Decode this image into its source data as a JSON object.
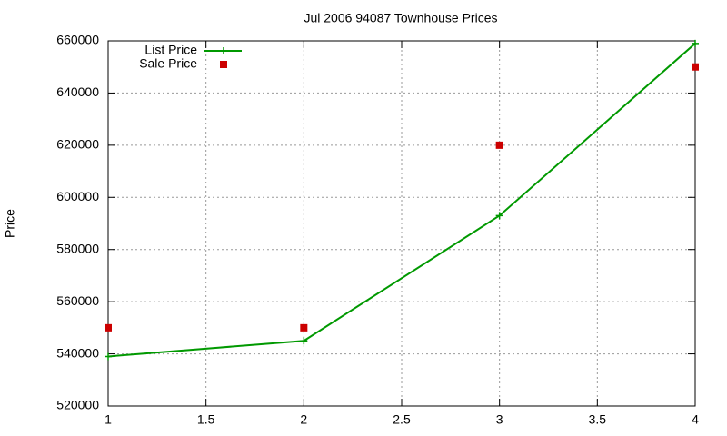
{
  "chart_data": {
    "type": "line",
    "title": "Jul 2006 94087 Townhouse Prices",
    "y_label": "Price",
    "x": [
      1,
      2,
      3,
      4
    ],
    "series": [
      {
        "name": "List Price",
        "color": "#009900",
        "line": true,
        "marker": "plus",
        "values": [
          539000,
          545000,
          593000,
          659000
        ]
      },
      {
        "name": "Sale Price",
        "color": "#cc0000",
        "line": false,
        "marker": "square",
        "values": [
          550000,
          550000,
          620000,
          650000
        ]
      }
    ],
    "xlim": [
      1,
      4
    ],
    "xticks": [
      1,
      1.5,
      2,
      2.5,
      3,
      3.5,
      4
    ],
    "ylim": [
      520000,
      660000
    ],
    "yticks": [
      520000,
      540000,
      560000,
      580000,
      600000,
      620000,
      640000,
      660000
    ],
    "grid": true,
    "legend_position": "top-left"
  }
}
